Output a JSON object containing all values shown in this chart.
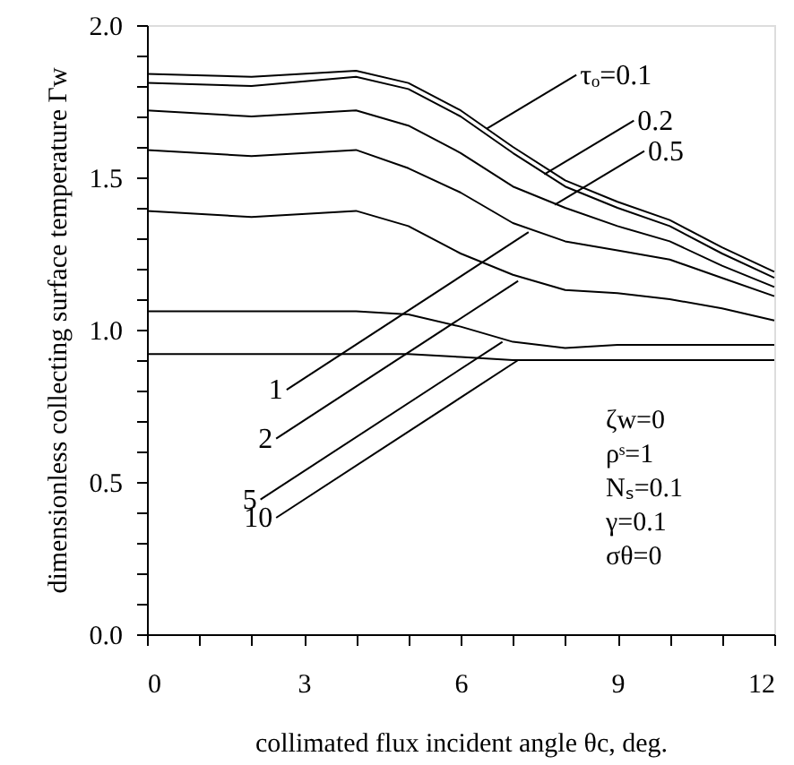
{
  "chart_data": {
    "type": "line",
    "xlabel": "collimated flux incident angle θc, deg.",
    "ylabel": "dimensionless collecting surface temperature Γw",
    "x": [
      0,
      2,
      4,
      5,
      6,
      7,
      8,
      9,
      10,
      11,
      12
    ],
    "series": [
      {
        "color": "#000000",
        "values": [
          1.84,
          1.83,
          1.85,
          1.81,
          1.72,
          1.6,
          1.49,
          1.42,
          1.36,
          1.27,
          1.19
        ]
      },
      {
        "color": "#000000",
        "values": [
          1.81,
          1.8,
          1.83,
          1.79,
          1.7,
          1.58,
          1.47,
          1.4,
          1.34,
          1.25,
          1.17
        ]
      },
      {
        "color": "#000000",
        "values": [
          1.72,
          1.7,
          1.72,
          1.67,
          1.58,
          1.47,
          1.4,
          1.34,
          1.29,
          1.21,
          1.14
        ]
      },
      {
        "color": "#000000",
        "values": [
          1.59,
          1.57,
          1.59,
          1.53,
          1.45,
          1.35,
          1.29,
          1.26,
          1.23,
          1.17,
          1.11
        ]
      },
      {
        "color": "#000000",
        "values": [
          1.39,
          1.37,
          1.39,
          1.34,
          1.25,
          1.18,
          1.13,
          1.12,
          1.1,
          1.07,
          1.03
        ]
      },
      {
        "color": "#000000",
        "values": [
          1.06,
          1.06,
          1.06,
          1.05,
          1.01,
          0.96,
          0.94,
          0.95,
          0.95,
          0.95,
          0.95
        ]
      },
      {
        "color": "#000000",
        "values": [
          0.92,
          0.92,
          0.92,
          0.92,
          0.91,
          0.9,
          0.9,
          0.9,
          0.9,
          0.9,
          0.9
        ]
      }
    ],
    "annotations": [
      {
        "text": "τₒ=0.1",
        "x": 6.5,
        "y": 1.66
      },
      {
        "text": "0.2",
        "x": 7.6,
        "y": 1.51
      },
      {
        "text": "0.5",
        "x": 7.8,
        "y": 1.41
      },
      {
        "text": "1",
        "x": 7.3,
        "y": 1.32
      },
      {
        "text": "2",
        "x": 7.1,
        "y": 1.16
      },
      {
        "text": "5",
        "x": 6.8,
        "y": 0.96
      },
      {
        "text": "10",
        "x": 7.1,
        "y": 0.9
      },
      "ζw=0",
      "ρˢ=1",
      "Nₛ=0.1",
      "γ=0.1",
      "σθ=0"
    ],
    "xlim": [
      0,
      12
    ],
    "ylim": [
      0,
      2
    ],
    "xticks": [
      0,
      {
        "value": 1,
        "label": null
      },
      {
        "value": 2,
        "label": null
      },
      3,
      {
        "value": 4,
        "label": null
      },
      {
        "value": 5,
        "label": null
      },
      6,
      {
        "value": 7,
        "label": null
      },
      {
        "value": 8,
        "label": null
      },
      9,
      {
        "value": 10,
        "label": null
      },
      {
        "value": 11,
        "label": null
      },
      12
    ],
    "yticks": [
      {
        "value": 0,
        "label": "0.0"
      },
      {
        "value": 0.1,
        "label": null
      },
      {
        "value": 0.2,
        "label": null
      },
      {
        "value": 0.3,
        "label": null
      },
      {
        "value": 0.4,
        "label": null
      },
      {
        "value": 0.5,
        "label": "0.5"
      },
      {
        "value": 0.6,
        "label": null
      },
      {
        "value": 0.7,
        "label": null
      },
      {
        "value": 0.8,
        "label": null
      },
      {
        "value": 0.9,
        "label": null
      },
      {
        "value": 1,
        "label": "1.0"
      },
      {
        "value": 1.1,
        "label": null
      },
      {
        "value": 1.2,
        "label": null
      },
      {
        "value": 1.3,
        "label": null
      },
      {
        "value": 1.4,
        "label": null
      },
      {
        "value": 1.5,
        "label": "1.5"
      },
      {
        "value": 1.6,
        "label": null
      },
      {
        "value": 1.7,
        "label": null
      },
      {
        "value": 1.8,
        "label": null
      },
      {
        "value": 1.9,
        "label": null
      },
      {
        "value": 2,
        "label": "2.0"
      }
    ],
    "grid": false,
    "line_style": "solid",
    "marker": "none"
  }
}
